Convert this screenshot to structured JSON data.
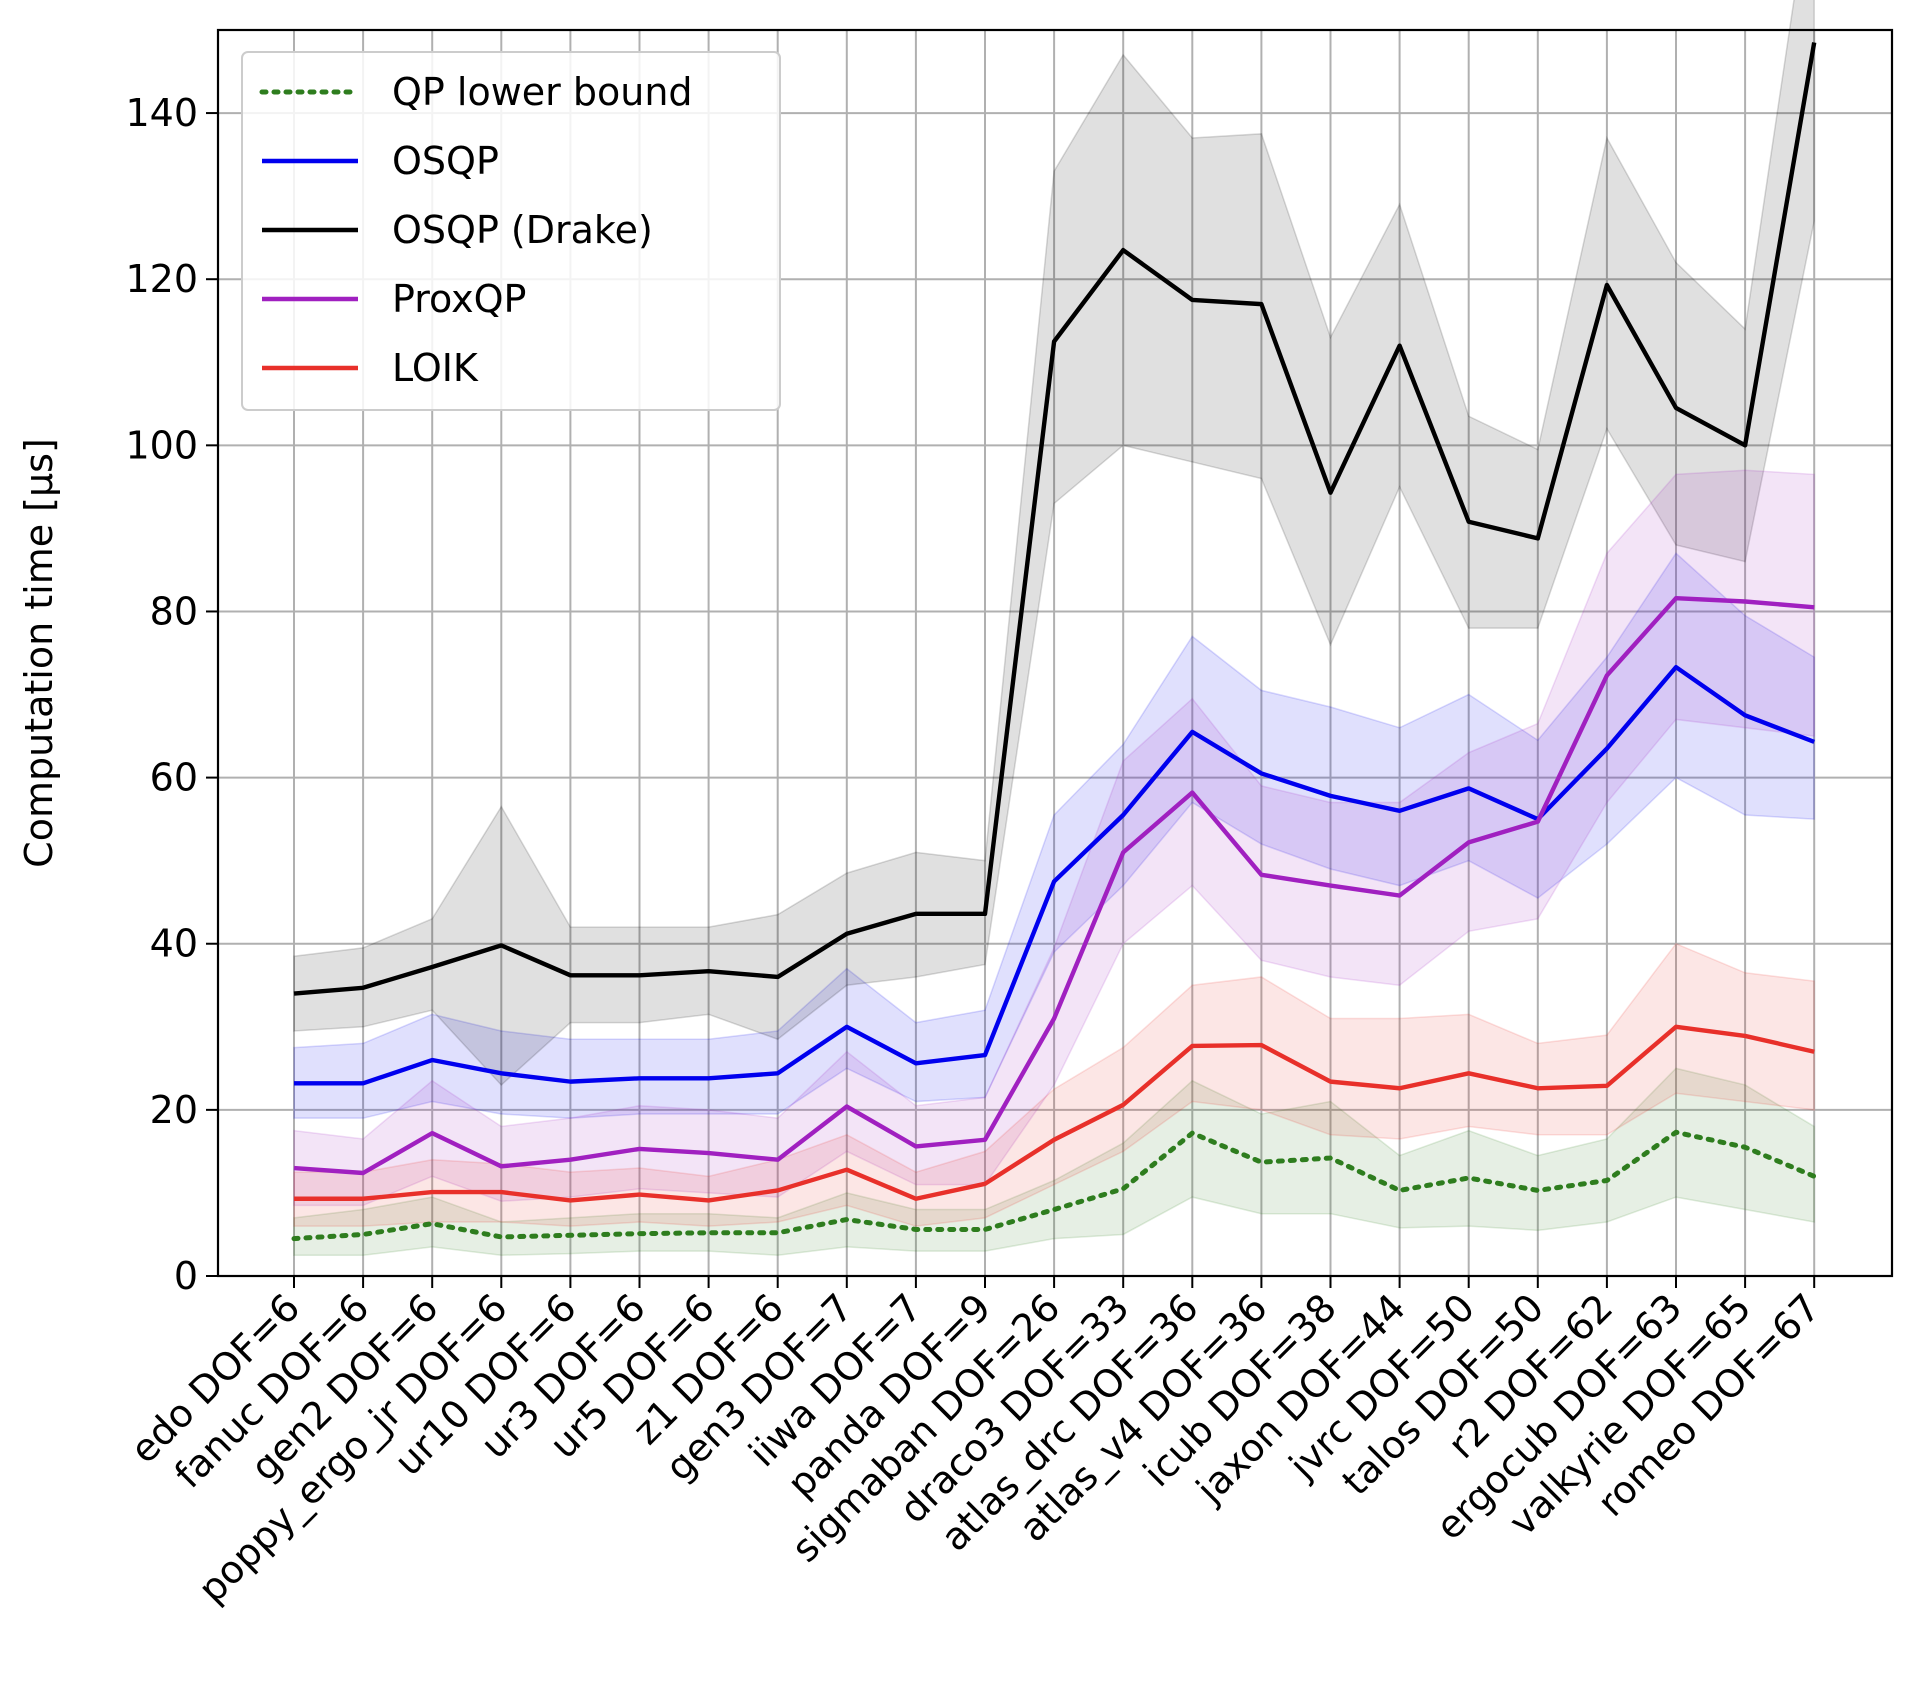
{
  "chart_data": {
    "type": "line",
    "xlabel": "",
    "ylabel": "Computation time [µs]",
    "ylim": [
      0,
      150
    ],
    "yticks": [
      0,
      20,
      40,
      60,
      80,
      100,
      120,
      140
    ],
    "grid": true,
    "legend_position": "top-left",
    "categories": [
      "edo DOF=6",
      "fanuc DOF=6",
      "gen2 DOF=6",
      "poppy_ergo_jr DOF=6",
      "ur10 DOF=6",
      "ur3 DOF=6",
      "ur5 DOF=6",
      "z1 DOF=6",
      "gen3 DOF=7",
      "iiwa DOF=7",
      "panda DOF=9",
      "sigmaban DOF=26",
      "draco3 DOF=33",
      "atlas_drc DOF=36",
      "atlas_v4 DOF=36",
      "icub DOF=38",
      "jaxon DOF=44",
      "jvrc DOF=50",
      "talos DOF=50",
      "r2 DOF=62",
      "ergocub DOF=63",
      "valkyrie DOF=65",
      "romeo DOF=67"
    ],
    "series": [
      {
        "name": "QP lower bound",
        "color": "#2e7d1e",
        "style": "dotted",
        "values": [
          4.5,
          5,
          6.3,
          4.7,
          4.9,
          5.1,
          5.2,
          5.2,
          6.8,
          5.6,
          5.6,
          8,
          10.5,
          17.2,
          13.7,
          14.2,
          10.3,
          11.8,
          10.3,
          11.5,
          17.3,
          15.5,
          12
        ],
        "lower": [
          2.5,
          2.5,
          3.5,
          2.5,
          2.7,
          3,
          3,
          2.5,
          3.5,
          3,
          3,
          4.5,
          5,
          9.5,
          7.5,
          7.5,
          5.8,
          6,
          5.5,
          6.5,
          9.5,
          8,
          6.5
        ],
        "upper": [
          7,
          8,
          9.5,
          6.5,
          7,
          7.5,
          7.5,
          7,
          10,
          8,
          8,
          11.5,
          16,
          23.5,
          19.5,
          21,
          14.5,
          17.5,
          14.5,
          16.5,
          25,
          23,
          18
        ]
      },
      {
        "name": "OSQP",
        "color": "#0000ee",
        "style": "solid",
        "values": [
          23.2,
          23.2,
          26,
          24.4,
          23.4,
          23.8,
          23.8,
          24.4,
          30,
          25.6,
          26.6,
          47.5,
          55.5,
          65.5,
          60.5,
          57.8,
          56,
          58.7,
          55,
          63.5,
          73.3,
          67.5,
          64.3
        ],
        "lower": [
          19,
          19,
          21,
          19.5,
          19,
          19.5,
          19.5,
          19.5,
          25,
          21,
          21.5,
          39,
          47,
          57,
          52,
          49,
          47,
          50,
          45.5,
          52,
          60,
          55.5,
          55
        ],
        "upper": [
          27.5,
          28,
          31.5,
          29.5,
          28.5,
          28.5,
          28.5,
          29.5,
          37,
          30.5,
          32,
          55.5,
          64,
          77,
          70.5,
          68.5,
          66,
          70,
          64.5,
          74.5,
          87,
          79.5,
          74.5
        ]
      },
      {
        "name": "OSQP (Drake)",
        "color": "#000000",
        "style": "solid",
        "values": [
          34,
          34.7,
          37.2,
          39.8,
          36.2,
          36.2,
          36.7,
          36,
          41.2,
          43.6,
          43.6,
          112.5,
          123.5,
          117.5,
          117,
          94.3,
          112,
          90.8,
          88.8,
          119.3,
          104.5,
          100,
          148.5
        ],
        "lower": [
          29.5,
          30,
          32,
          23,
          30.5,
          30.5,
          31.5,
          28.5,
          35,
          36,
          37.5,
          93,
          100,
          98,
          96,
          76,
          95,
          78,
          78,
          102,
          88,
          86,
          127
        ],
        "upper": [
          38.5,
          39.5,
          43,
          56.5,
          42,
          42,
          42,
          43.5,
          48.5,
          51,
          50,
          133,
          147,
          137,
          137.5,
          113,
          129,
          103.5,
          99.5,
          137,
          122,
          114,
          170
        ]
      },
      {
        "name": "ProxQP",
        "color": "#a020c0",
        "style": "solid",
        "values": [
          13,
          12.4,
          17.2,
          13.2,
          14,
          15.3,
          14.8,
          14,
          20.4,
          15.6,
          16.4,
          31,
          51,
          58.2,
          48.3,
          47,
          45.8,
          52.2,
          54.7,
          72.3,
          81.6,
          81.2,
          80.5
        ],
        "lower": [
          8.5,
          8.5,
          12,
          9,
          9.5,
          10.5,
          10,
          9.5,
          15,
          11,
          11,
          23,
          40,
          47,
          38,
          36,
          35,
          41.5,
          43,
          57,
          67,
          66,
          65
        ],
        "upper": [
          17.5,
          16.5,
          23.5,
          18,
          19,
          20.5,
          20,
          19,
          27,
          20.5,
          21.5,
          39.5,
          62,
          69.5,
          59,
          57,
          57,
          63,
          66.5,
          87,
          96.5,
          97,
          96.5
        ]
      },
      {
        "name": "LOIK",
        "color": "#e8302a",
        "style": "solid",
        "values": [
          9.3,
          9.3,
          10.1,
          10.1,
          9.1,
          9.8,
          9.1,
          10.3,
          12.8,
          9.3,
          11.1,
          16.4,
          20.6,
          27.7,
          27.8,
          23.4,
          22.6,
          24.4,
          22.6,
          22.9,
          30,
          28.9,
          27
        ],
        "lower": [
          6,
          6,
          6.5,
          6.5,
          6,
          6.5,
          6,
          6.5,
          8.5,
          6,
          7,
          11,
          15,
          21,
          20,
          17,
          16.5,
          18,
          17,
          17,
          22,
          21,
          20
        ],
        "upper": [
          12.5,
          12.5,
          14,
          13.5,
          12.5,
          13,
          12,
          14,
          17,
          12.5,
          15,
          22.5,
          27.5,
          35,
          36,
          31,
          31,
          31.5,
          28,
          29,
          40,
          36.5,
          35.5
        ]
      }
    ]
  }
}
